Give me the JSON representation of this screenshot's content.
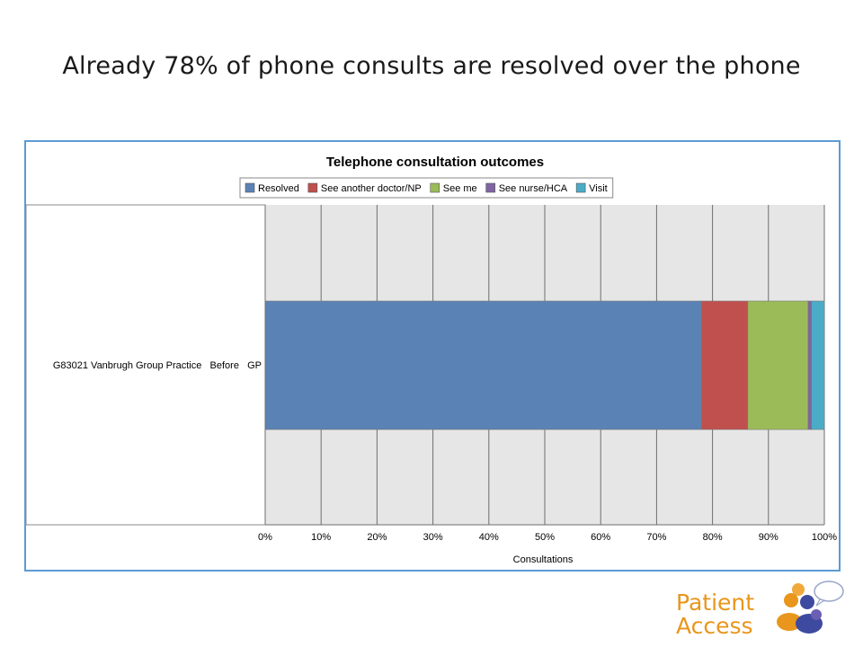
{
  "slide": {
    "title": "Already 78% of phone consults are resolved over the phone"
  },
  "logo": {
    "line1": "Patient",
    "line2": "Access",
    "text_color": "#e8961c"
  },
  "chart_data": {
    "type": "bar",
    "orientation": "horizontal",
    "stacked": "percent",
    "title": "Telephone consultation outcomes",
    "xlabel": "Consultations",
    "ylabel": "",
    "categories": [
      "G83021 Vanbrugh Group Practice   Before   GP"
    ],
    "xlim": [
      0,
      100
    ],
    "xticks": [
      "0%",
      "10%",
      "20%",
      "30%",
      "40%",
      "50%",
      "60%",
      "70%",
      "80%",
      "90%",
      "100%"
    ],
    "grid": true,
    "legend_position": "top",
    "series": [
      {
        "name": "Resolved",
        "values": [
          78
        ],
        "color": "#5b82b4"
      },
      {
        "name": "See another doctor/NP",
        "values": [
          8.3
        ],
        "color": "#c0504d"
      },
      {
        "name": "See me",
        "values": [
          10.8
        ],
        "color": "#9bbb59"
      },
      {
        "name": "See nurse/HCA",
        "values": [
          0.6
        ],
        "color": "#8064a2"
      },
      {
        "name": "Visit",
        "values": [
          2.3
        ],
        "color": "#4bacc6"
      }
    ]
  }
}
